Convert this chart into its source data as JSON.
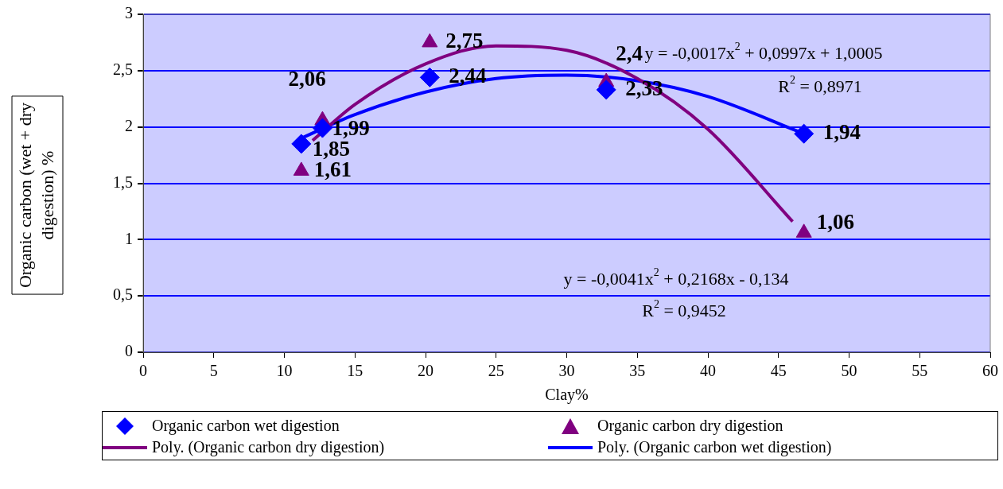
{
  "chart_data": {
    "type": "scatter",
    "xlabel": "Clay%",
    "ylabel": "Organic carbon (wet + dry digestion) %",
    "xlim": [
      0,
      60
    ],
    "xticks": [
      0,
      5,
      10,
      15,
      20,
      25,
      30,
      35,
      40,
      45,
      50,
      55,
      60
    ],
    "ylim": [
      0,
      3
    ],
    "yticks": [
      0,
      {
        "value": 0.5,
        "label": "0,5"
      },
      1,
      {
        "value": 1.5,
        "label": "1,5"
      },
      2,
      {
        "value": 2.5,
        "label": "2,5"
      },
      3
    ],
    "grid": "y",
    "legend": "bottom",
    "series": [
      {
        "name": "Organic carbon wet digestion",
        "type": "scatter",
        "marker": "diamond",
        "color": "#0000ff",
        "x": [
          11.2,
          12.7,
          20.3,
          32.8,
          46.8
        ],
        "values": [
          1.85,
          1.99,
          2.44,
          2.33,
          1.94
        ],
        "value_labels": [
          "1,85",
          "1,99",
          "2,44",
          "2,33",
          "1,94"
        ]
      },
      {
        "name": "Organic carbon dry digestion",
        "type": "scatter",
        "marker": "triangle",
        "color": "#800080",
        "x": [
          11.2,
          12.7,
          20.3,
          32.8,
          46.8
        ],
        "values": [
          1.61,
          2.06,
          2.75,
          2.4,
          1.06
        ],
        "value_labels": [
          "1,61",
          "2,06",
          "2,75",
          "2,4",
          "1,06"
        ]
      },
      {
        "name": "Poly. (Organic carbon dry digestion)",
        "type": "line",
        "marker": "none",
        "color": "#800080",
        "x": [
          12,
          15,
          20,
          25,
          30,
          35,
          40,
          46
        ],
        "values": [
          1.88,
          2.2,
          2.56,
          2.72,
          2.68,
          2.43,
          1.98,
          1.16
        ]
      },
      {
        "name": "Poly. (Organic carbon wet digestion)",
        "type": "line",
        "marker": "none",
        "color": "#0000ff",
        "x": [
          11.2,
          15,
          20,
          25,
          30,
          35,
          40,
          46.8
        ],
        "values": [
          1.9,
          2.11,
          2.31,
          2.43,
          2.46,
          2.41,
          2.27,
          1.94
        ]
      }
    ],
    "annotations": [
      "y = -0,0017x$^{2}$ + 0,0997x + 1,0005",
      "R$^{2}$ = 0,8971",
      "y = -0,0041x$^{2}$ + 0,2168x - 0,134",
      "R$^{2}$ = 0,9452"
    ]
  }
}
